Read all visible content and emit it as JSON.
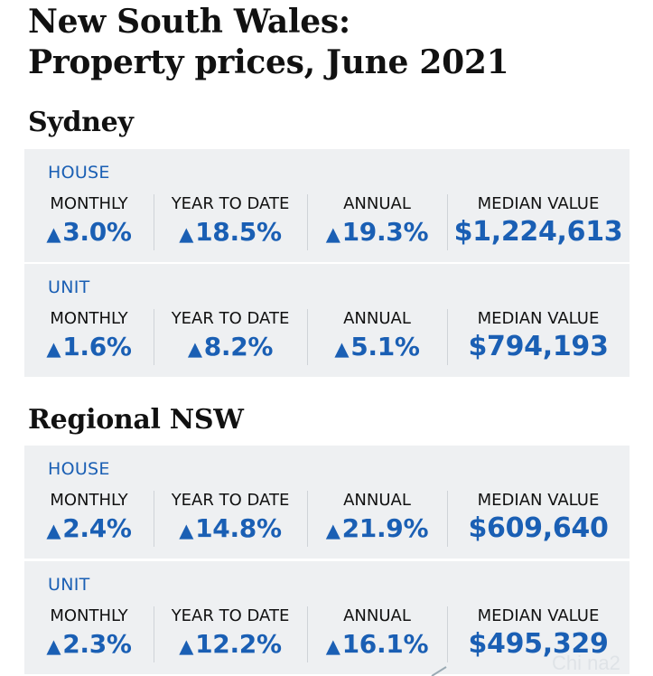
{
  "title": {
    "line1": "New South Wales:",
    "line2": "Property prices, June 2021"
  },
  "icons": {
    "arrow_up": "▲"
  },
  "colors": {
    "accent": "#1a5fb4",
    "card_bg": "#eef0f2",
    "text": "#111111"
  },
  "sections": [
    {
      "heading": "Sydney",
      "cards": [
        {
          "type": "HOUSE",
          "labels": [
            "MONTHLY",
            "YEAR TO DATE",
            "ANNUAL",
            "MEDIAN VALUE"
          ],
          "monthly": "3.0%",
          "ytd": "18.5%",
          "annual": "19.3%",
          "median": "$1,224,613"
        },
        {
          "type": "UNIT",
          "labels": [
            "MONTHLY",
            "YEAR TO DATE",
            "ANNUAL",
            "MEDIAN VALUE"
          ],
          "monthly": "1.6%",
          "ytd": "8.2%",
          "annual": "5.1%",
          "median": "$794,193"
        }
      ]
    },
    {
      "heading": "Regional NSW",
      "cards": [
        {
          "type": "HOUSE",
          "labels": [
            "MONTHLY",
            "YEAR TO DATE",
            "ANNUAL",
            "MEDIAN VALUE"
          ],
          "monthly": "2.4%",
          "ytd": "14.8%",
          "annual": "21.9%",
          "median": "$609,640"
        },
        {
          "type": "UNIT",
          "labels": [
            "MONTHLY",
            "YEAR TO DATE",
            "ANNUAL",
            "MEDIAN VALUE"
          ],
          "monthly": "2.3%",
          "ytd": "12.2%",
          "annual": "16.1%",
          "median": "$495,329"
        }
      ]
    }
  ],
  "watermark": "Chi na2"
}
